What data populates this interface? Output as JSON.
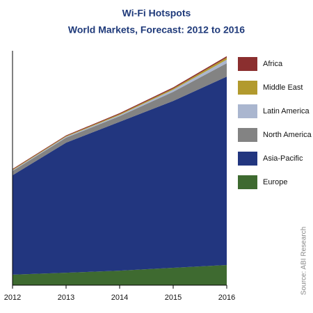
{
  "chart_data": {
    "type": "stacked-area",
    "title": "Wi-Fi Hotspots",
    "subtitle": "World Markets, Forecast: 2012 to 2016",
    "source": "Source: ABI Research",
    "categories": [
      "2012",
      "2013",
      "2014",
      "2015",
      "2016"
    ],
    "ylim": [
      0,
      100
    ],
    "series": [
      {
        "name": "Europe",
        "color": "#3e6a30",
        "values": [
          4.5,
          5.3,
          6.2,
          7.4,
          8.6
        ]
      },
      {
        "name": "Asia-Pacific",
        "color": "#22367f",
        "values": [
          42.4,
          55.5,
          63.5,
          71.2,
          80.4
        ]
      },
      {
        "name": "North America",
        "color": "#838383",
        "values": [
          1.8,
          2.1,
          2.4,
          3.9,
          5.7
        ]
      },
      {
        "name": "Latin America",
        "color": "#aab6cf",
        "values": [
          0.3,
          0.4,
          0.5,
          0.9,
          1.5
        ]
      },
      {
        "name": "Middle East",
        "color": "#b29a2e",
        "values": [
          0.3,
          0.3,
          0.4,
          0.5,
          0.9
        ]
      },
      {
        "name": "Africa",
        "color": "#8b2f2f",
        "values": [
          0.3,
          0.3,
          0.4,
          0.5,
          0.6
        ]
      }
    ]
  }
}
